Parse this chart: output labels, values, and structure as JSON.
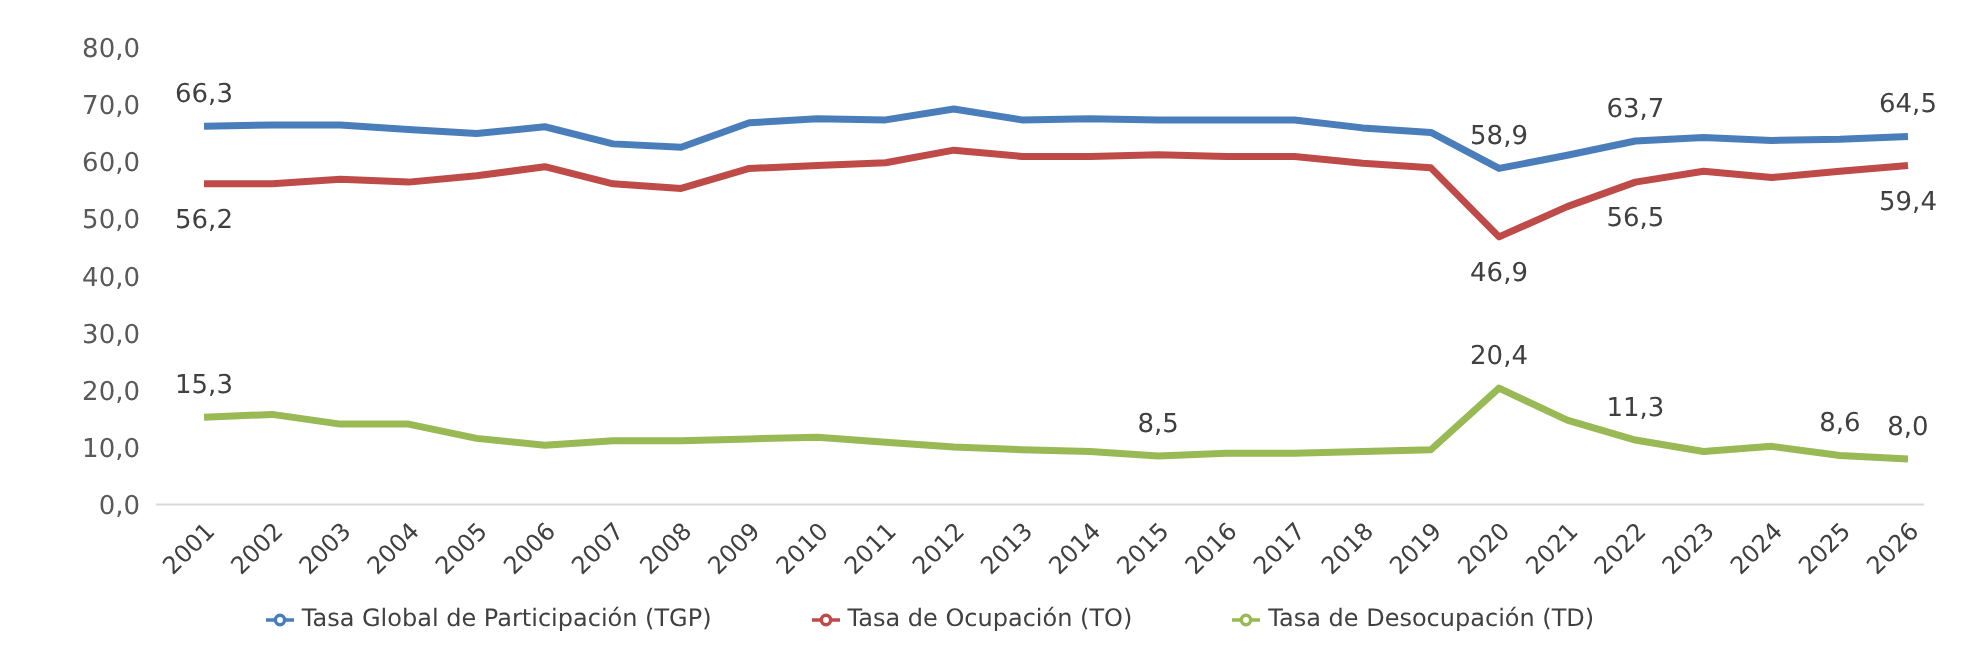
{
  "chart_data": {
    "type": "line",
    "categories": [
      "2001",
      "2002",
      "2003",
      "2004",
      "2005",
      "2006",
      "2007",
      "2008",
      "2009",
      "2010",
      "2011",
      "2012",
      "2013",
      "2014",
      "2015",
      "2016",
      "2017",
      "2018",
      "2019",
      "2020",
      "2021",
      "2022",
      "2023",
      "2024",
      "2025",
      "2026"
    ],
    "series": [
      {
        "name": "Tasa Global de Participación (TGP)",
        "color": "#4a7ebb",
        "values": [
          66.3,
          66.5,
          66.5,
          65.7,
          65.0,
          66.2,
          63.2,
          62.6,
          66.9,
          67.6,
          67.4,
          69.3,
          67.4,
          67.6,
          67.4,
          67.4,
          67.4,
          66.0,
          65.2,
          58.9,
          61.2,
          63.7,
          64.3,
          63.8,
          64.0,
          64.5
        ],
        "value_labels": [
          "66,3",
          null,
          null,
          null,
          null,
          null,
          null,
          null,
          null,
          null,
          null,
          null,
          null,
          null,
          null,
          null,
          null,
          null,
          null,
          "58,9",
          null,
          "63,7",
          null,
          null,
          null,
          "64,5"
        ]
      },
      {
        "name": "Tasa de Ocupación (TO)",
        "color": "#be4b48",
        "values": [
          56.2,
          56.2,
          57.0,
          56.5,
          57.6,
          59.2,
          56.2,
          55.4,
          58.9,
          59.4,
          59.9,
          62.1,
          61.0,
          61.0,
          61.3,
          61.0,
          61.0,
          59.8,
          59.0,
          46.9,
          52.2,
          56.5,
          58.4,
          57.3,
          58.4,
          59.4
        ],
        "value_labels": [
          "56,2",
          null,
          null,
          null,
          null,
          null,
          null,
          null,
          null,
          null,
          null,
          null,
          null,
          null,
          null,
          null,
          null,
          null,
          null,
          "46,9",
          null,
          "56,5",
          null,
          null,
          null,
          "59,4"
        ]
      },
      {
        "name": "Tasa de Desocupación (TD)",
        "color": "#98b954",
        "values": [
          15.3,
          15.8,
          14.1,
          14.1,
          11.6,
          10.4,
          11.2,
          11.2,
          11.5,
          11.8,
          10.9,
          10.1,
          9.6,
          9.3,
          8.5,
          9.0,
          9.0,
          9.3,
          9.6,
          20.4,
          14.8,
          11.3,
          9.3,
          10.2,
          8.6,
          8.0
        ],
        "value_labels": [
          "15,3",
          null,
          null,
          null,
          null,
          null,
          null,
          null,
          null,
          null,
          null,
          null,
          null,
          null,
          "8,5",
          null,
          null,
          null,
          null,
          "20,4",
          null,
          "11,3",
          null,
          null,
          "8,6",
          "8,0"
        ]
      }
    ],
    "ylim": [
      0,
      80
    ],
    "yticks": [
      {
        "value": 0,
        "label": "0,0"
      },
      {
        "value": 10,
        "label": "10,0"
      },
      {
        "value": 20,
        "label": "20,0"
      },
      {
        "value": 30,
        "label": "30,0"
      },
      {
        "value": 40,
        "label": "40,0"
      },
      {
        "value": 50,
        "label": "50,0"
      },
      {
        "value": 60,
        "label": "60,0"
      },
      {
        "value": 70,
        "label": "70,0"
      },
      {
        "value": 80,
        "label": "80,0"
      }
    ],
    "grid": false,
    "legend": "bottom",
    "marker": "none",
    "line_style": "solid"
  }
}
